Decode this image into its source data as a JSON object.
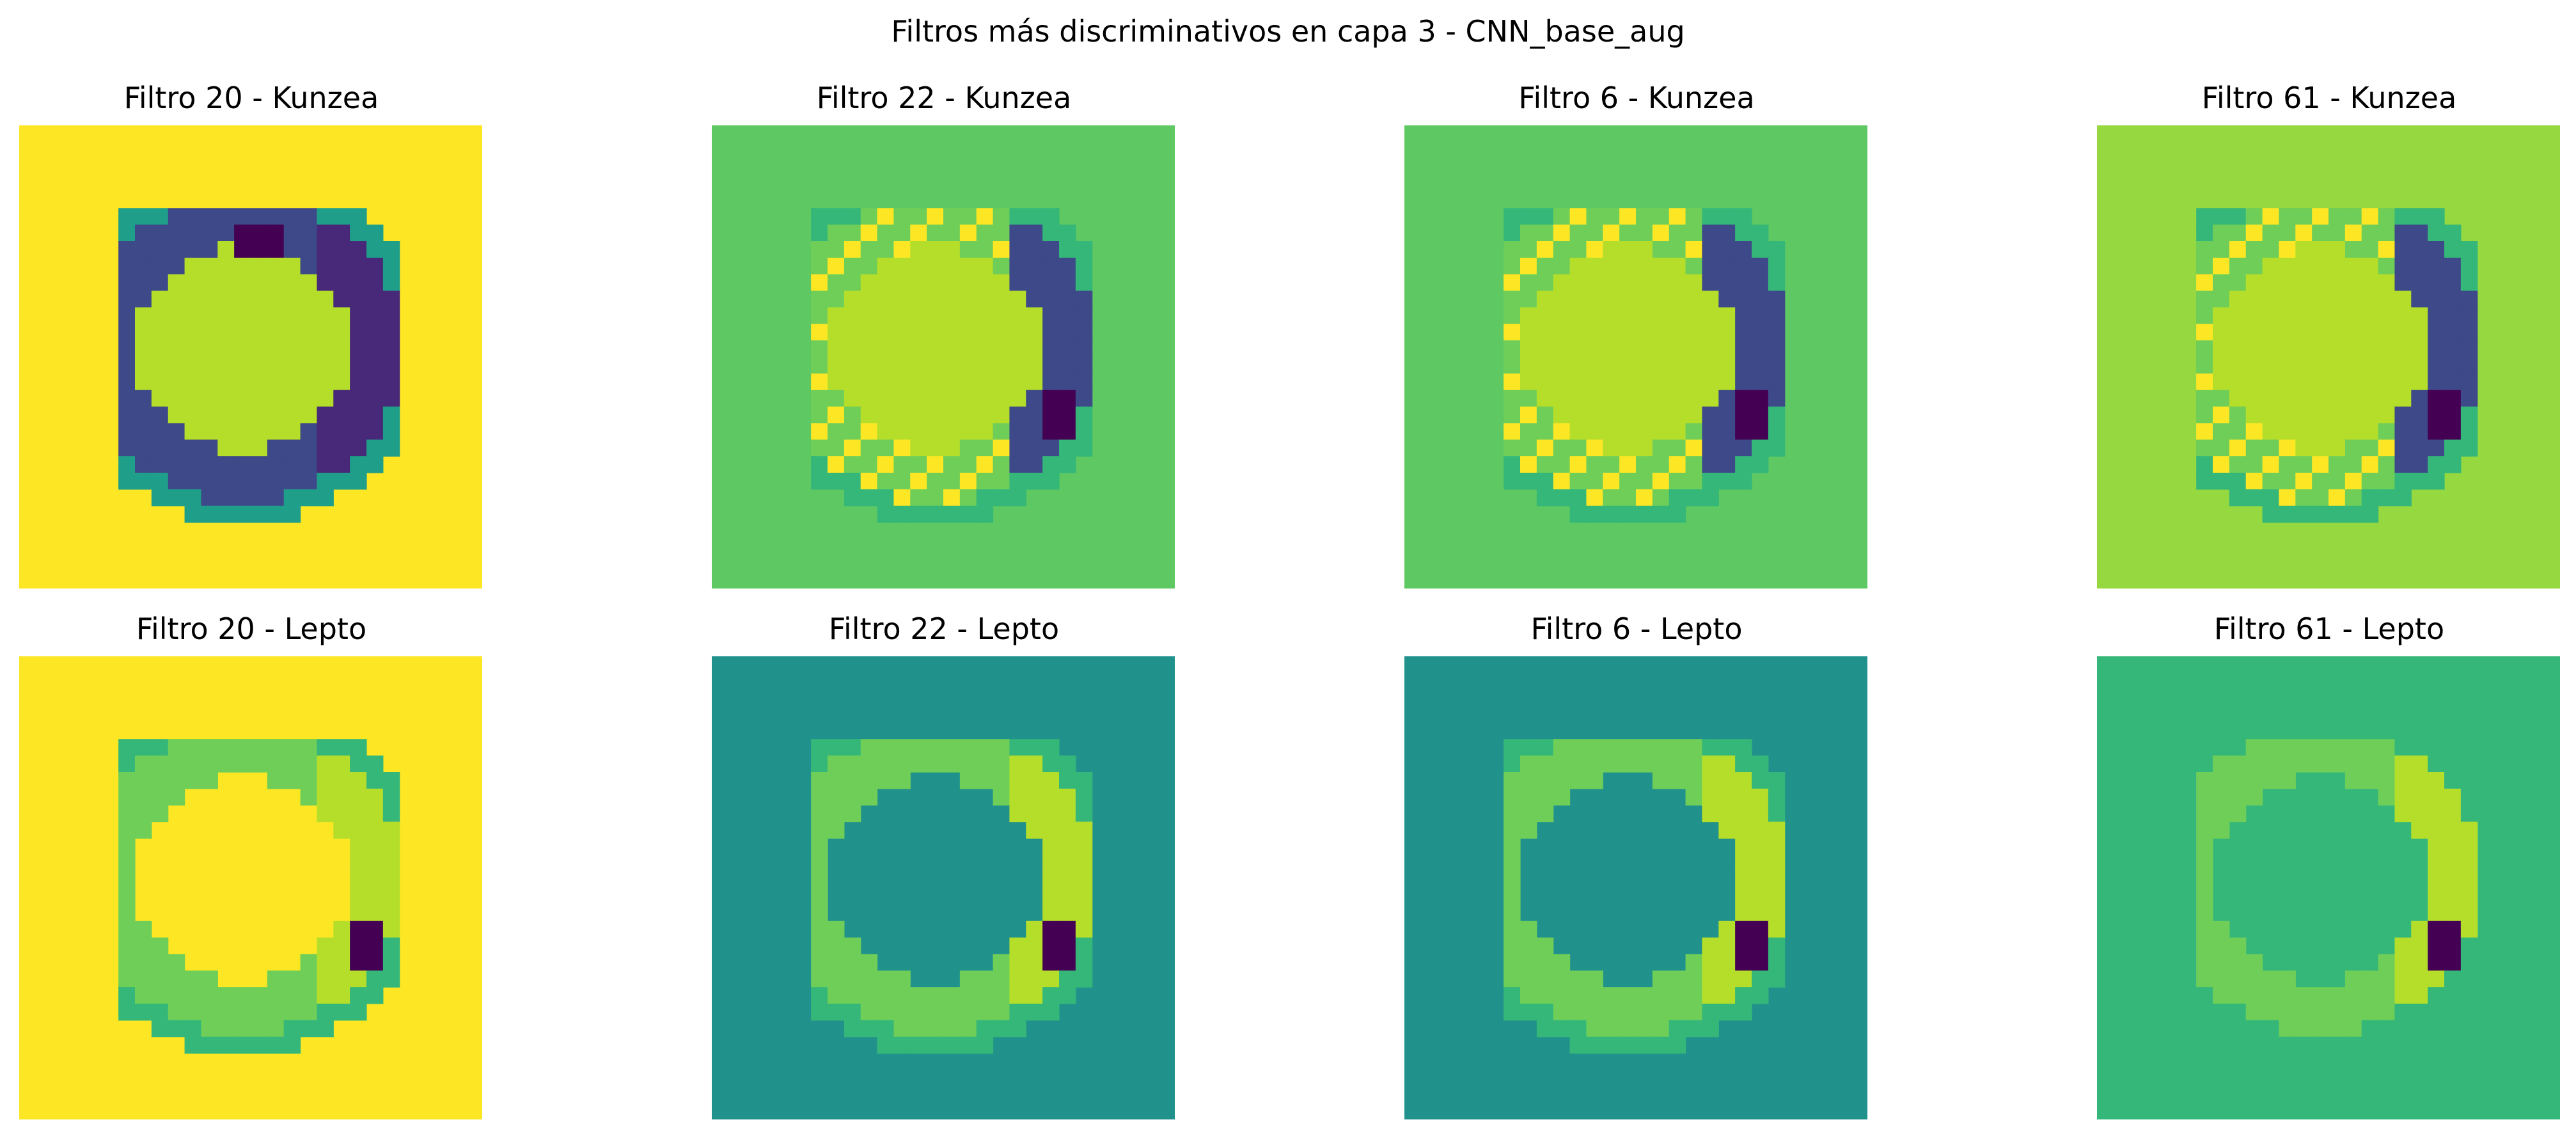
{
  "figure": {
    "title": "Filtros más discriminativos en capa 3 - CNN_base_aug"
  },
  "panels": [
    {
      "title": "Filtro 20 - Kunzea",
      "background": "#fde725",
      "pattern": "ring-dark-on-yellow"
    },
    {
      "title": "Filtro 22 - Kunzea",
      "background": "#5ec962",
      "pattern": "ring-mixed-on-green"
    },
    {
      "title": "Filtro 6 - Kunzea",
      "background": "#5ec962",
      "pattern": "ring-mixed-on-green"
    },
    {
      "title": "Filtro 61 - Kunzea",
      "background": "#95d840",
      "pattern": "ring-mixed-on-lime"
    },
    {
      "title": "Filtro 20 - Lepto",
      "background": "#fde725",
      "pattern": "ring-light-on-yellow"
    },
    {
      "title": "Filtro 22 - Lepto",
      "background": "#21918c",
      "pattern": "ring-light-on-teal"
    },
    {
      "title": "Filtro 6 - Lepto",
      "background": "#21918c",
      "pattern": "ring-light-on-teal"
    },
    {
      "title": "Filtro 61 - Lepto",
      "background": "#35b779",
      "pattern": "ring-light-on-green"
    }
  ],
  "colormap": "viridis"
}
